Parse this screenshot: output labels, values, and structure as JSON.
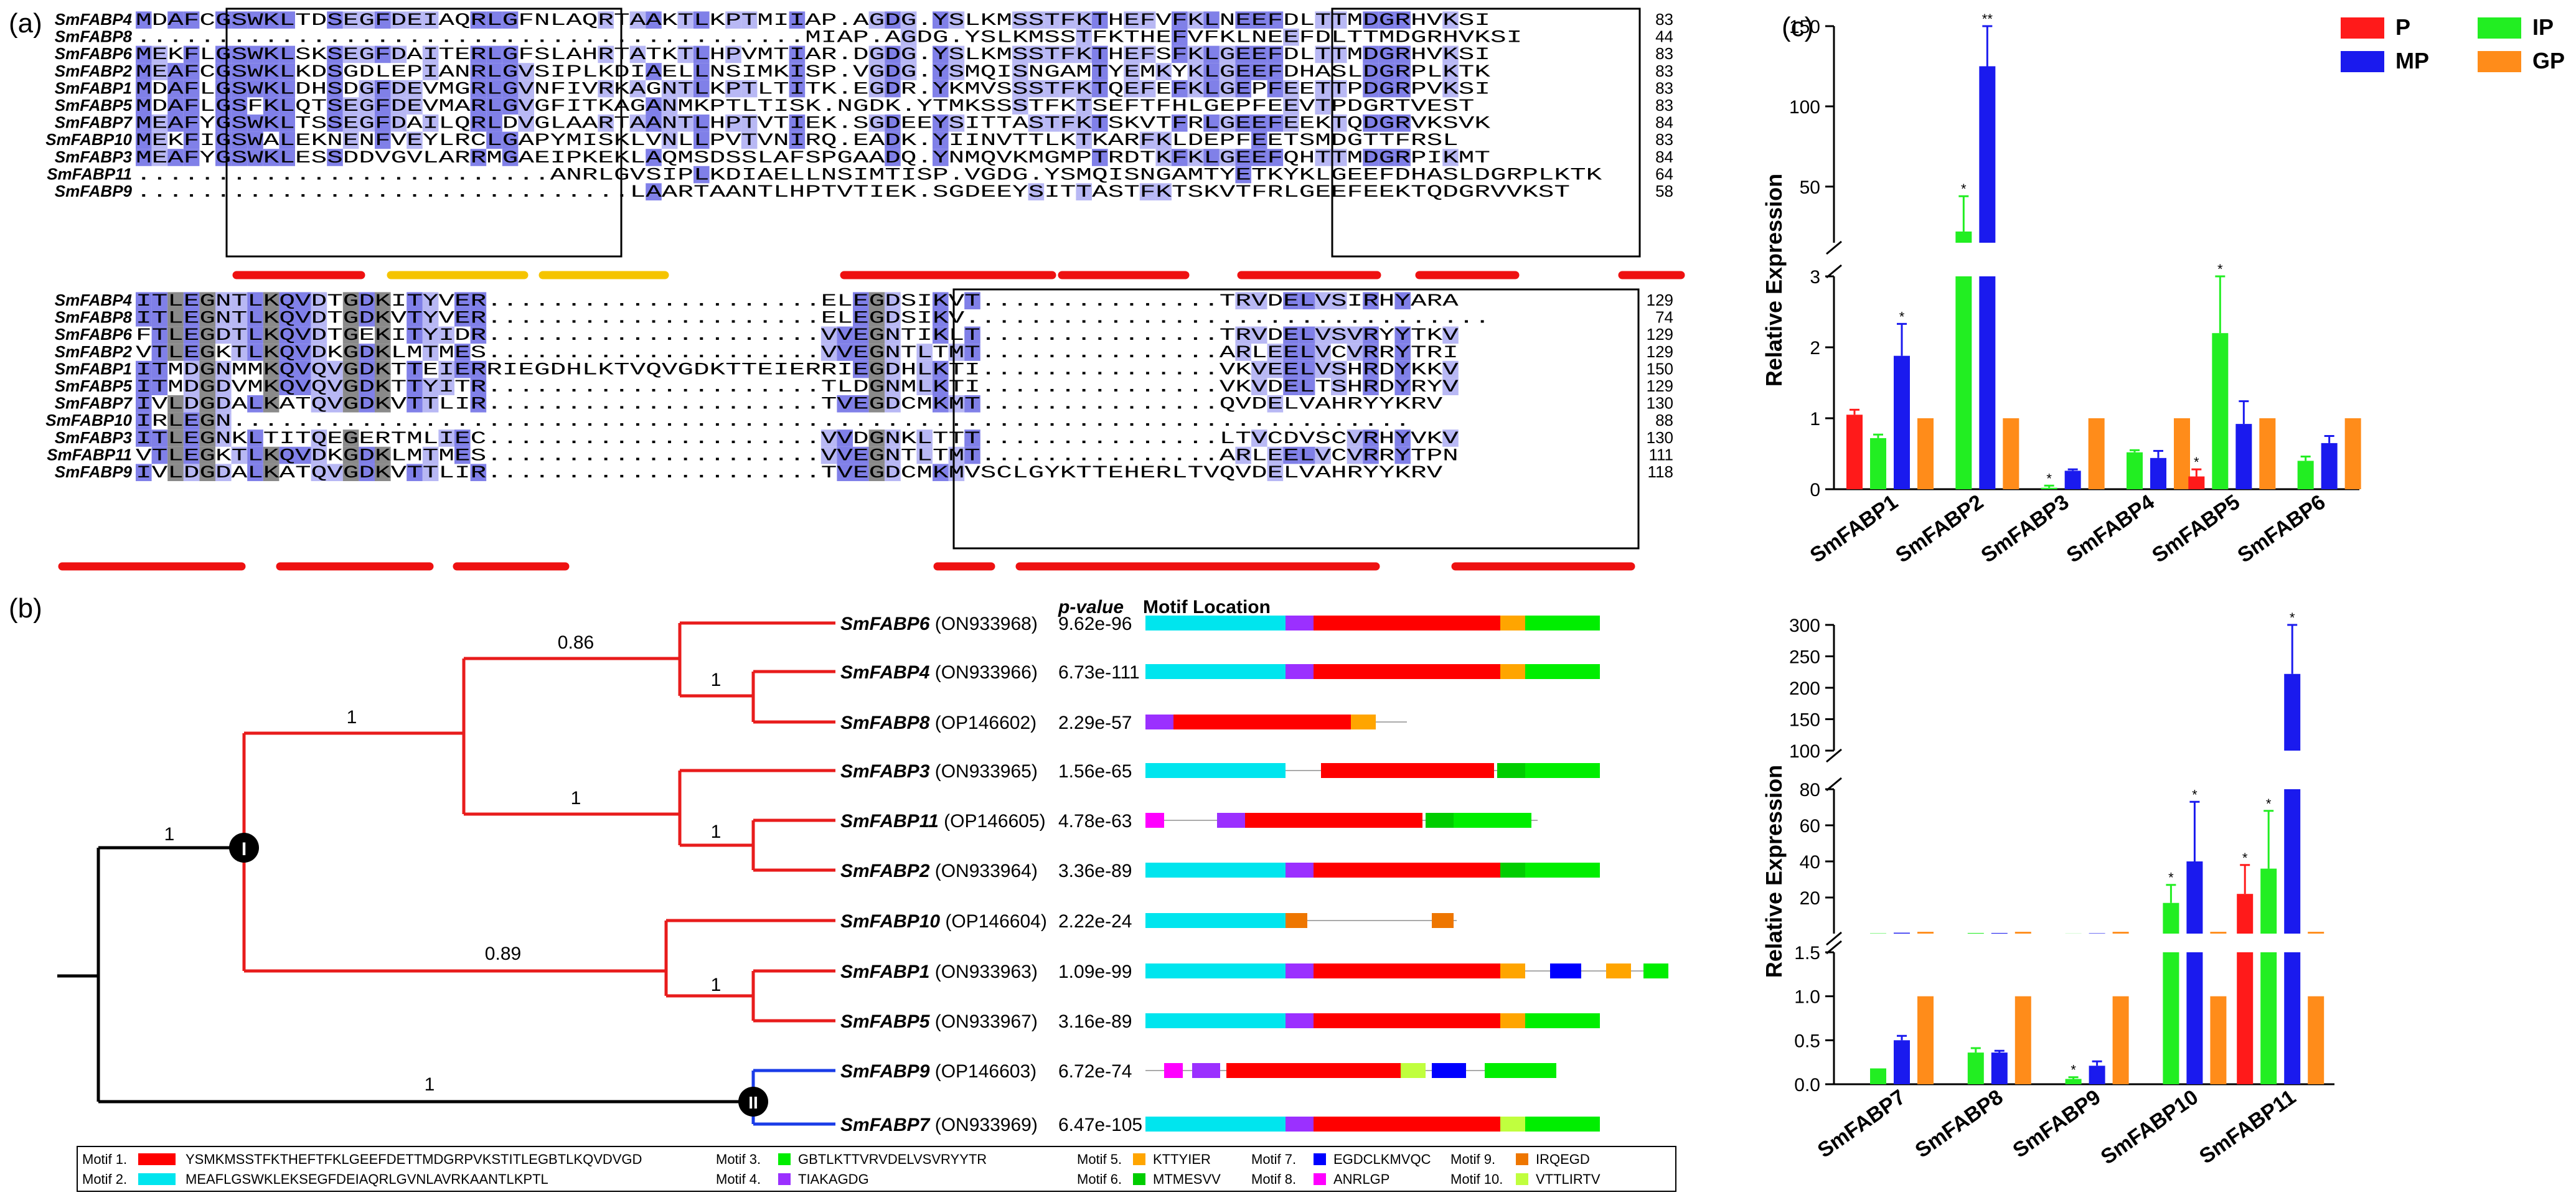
{
  "panel_a": {
    "label": "(a)",
    "block1": {
      "rows": [
        {
          "name": "SmFABP4",
          "seq": "MDAFCGSWKLTDSEGFDEIAQRLGFNLAQRTAAKTLKPTMIIAP.AGDG.YSLKMSSTFKTHEFVFKLNEEFDLTTMDGRHVKSI",
          "num": "83"
        },
        {
          "name": "SmFABP8",
          "seq": "..........................................MIAP.AGDG.YSLKMSSTFKTHEFVFKLNEEFDLTTMDGRHVKSI",
          "num": "44"
        },
        {
          "name": "SmFABP6",
          "seq": "MEKFLGSWKLSKSEGFDAITERLGFSLAHRTATKTLHPVMTIAR.DGDG.YSLKMSSTFKTHEFSFKLGEEFDLTTMDGRHVKSI",
          "num": "83"
        },
        {
          "name": "SmFABP2",
          "seq": "MEAFCGSWKLKDSGDLEPIANRLGVSIPLKDIAELLNSIMKISP.VGDG.YSMQISNGAMTYEMKYKLGEEFDHASLDGRPLKTK",
          "num": "83"
        },
        {
          "name": "SmFABP1",
          "seq": "MDAFLGSWKLDHSDGFDEVMGRLGVNFIVRKAGNTLKPTLTITK.EGDR.YKMVSSSTFKTQEFEFKLGEPFEETTPDGRPVKSI",
          "num": "83"
        },
        {
          "name": "SmFABP5",
          "seq": "MDAFLGSFKLQTSEGFDEVMARLGVGFITKAGANMKPTLTISK.NGDK.YTMKSSSTFKTSEFTFHLGEPFEEVTPDGRTVEST",
          "num": "83"
        },
        {
          "name": "SmFABP7",
          "seq": "MEAFYGSWKLTSSEGFDAILQRLDVGLAARTAANTLHPTVTIEK.SGDEEYSITTASTFKTSKVTFRLGEEFEEKTQDGRVKSVK",
          "num": "84"
        },
        {
          "name": "SmFABP10",
          "seq": "MEKFIGSWALEKNENFVEYLRCLGAPYMISKLVNLLPVTVNIRQ.EADK.YIINVTTLKTKARFKLDEPFEETSMDGTTFRSL",
          "num": "83"
        },
        {
          "name": "SmFABP3",
          "seq": "MEAFYGSWKLESSDDVGVLARRMGAEIPKEKLAQMSDSSLAFSPGAADQ.YNMQVKMGMPTRDTKFKLGEEFQHTTMDGRPIKMT",
          "num": "84"
        },
        {
          "name": "SmFABP11",
          "seq": "..........................ANRLGVSIPLKDIAELLNSIMTISP.VGDG.YSMQISNGAMTYETKYKLGEEFDHASLDGRPLKTK",
          "num": "64"
        },
        {
          "name": "SmFABP9",
          "seq": "...............................LAARTAANTLHPTVTIEK.SGDEEYSITTASTFKTSKVTFRLGEEFEEKTQDGRVVKST",
          "num": "58"
        }
      ]
    },
    "block2": {
      "rows": [
        {
          "name": "SmFABP4",
          "seq": "ITLEGNTLKQVDTGDKITYVER.....................ELEGDSIKVT...............TRVDELVSIRHYARA",
          "num": "129"
        },
        {
          "name": "SmFABP8",
          "seq": "ITLEGNTLKQVDTGDKVTYVER.....................ELEGDSIKV.................................",
          "num": "74"
        },
        {
          "name": "SmFABP6",
          "seq": "FTLEGDTLKQVDTGEKITYIDR.....................VVEGNTIKLT...............TRVDELVSVRYYTKV",
          "num": "129"
        },
        {
          "name": "SmFABP2",
          "seq": "VTLEGKTLKQVDKGDKLMTMES.....................VVEGNTLTMT...............ARLEELVCVRRYTRI",
          "num": "129"
        },
        {
          "name": "SmFABP1",
          "seq": "ITMDGNMMKQVQVGDKTTEIERRIEGDHLKTVQVGDKTTEIERRIEGDHLKTI...............VKVEELVSHRDYKKV",
          "num": "150"
        },
        {
          "name": "SmFABP5",
          "seq": "ITMDGDVMKQVQVGDKTTYITR.....................TLDGNMLKTI...............VKVDELTSHRDYRYV",
          "num": "129"
        },
        {
          "name": "SmFABP7",
          "seq": "IVLDGDALKATQVGDKVTTLIR.....................TVEGDCMKMT...............QVDELVAHRYYKRV",
          "num": "130"
        },
        {
          "name": "SmFABP10",
          "seq": "IRLEGN..........................................................................",
          "num": "88"
        },
        {
          "name": "SmFABP3",
          "seq": "ITLEGNKLTITQEGERTMLIEC.....................VVDGNKLTTT...............LTVCDVSCVRHYVKV",
          "num": "130"
        },
        {
          "name": "SmFABP11",
          "seq": "VTLEGKTLKQVDKGDKLMTMES.....................VVEGNTLTMT...............ARLEELVCVRRYTPN",
          "num": "111"
        },
        {
          "name": "SmFABP9",
          "seq": "IVLDGDALKATQVGDKVTTLIR.....................TVEGDCMKMVSCLGYKTTEHERLTVQVDELVAHRYYKRV",
          "num": "118"
        }
      ]
    }
  },
  "panel_b": {
    "label": "(b)",
    "header_pvalue": "p-value",
    "header_motif": "Motif Location",
    "genes": [
      {
        "name": "SmFABP6",
        "acc": "(ON933968)",
        "p": "9.62e-96"
      },
      {
        "name": "SmFABP4",
        "acc": "(ON933966)",
        "p": "6.73e-111"
      },
      {
        "name": "SmFABP8",
        "acc": "(OP146602)",
        "p": "2.29e-57"
      },
      {
        "name": "SmFABP3",
        "acc": "(ON933965)",
        "p": "1.56e-65"
      },
      {
        "name": "SmFABP11",
        "acc": "(OP146605)",
        "p": "4.78e-63"
      },
      {
        "name": "SmFABP2",
        "acc": "(ON933964)",
        "p": "3.36e-89"
      },
      {
        "name": "SmFABP10",
        "acc": "(OP146604)",
        "p": "2.22e-24"
      },
      {
        "name": "SmFABP1",
        "acc": "(ON933963)",
        "p": "1.09e-99"
      },
      {
        "name": "SmFABP5",
        "acc": "(ON933967)",
        "p": "3.16e-89"
      },
      {
        "name": "SmFABP9",
        "acc": "(OP146603)",
        "p": "6.72e-74"
      },
      {
        "name": "SmFABP7",
        "acc": "(ON933969)",
        "p": "6.47e-105"
      }
    ],
    "bootstrap": [
      "0.86",
      "1",
      "1",
      "1",
      "1",
      "1",
      "0.89",
      "1",
      "1"
    ],
    "clades": [
      "I",
      "II"
    ],
    "legend": [
      {
        "label": "Motif 1.",
        "seq": "YSMKMSSTFKTHEFTFKLGEEFDETTMDGRPVKSTITLEGBTLKQVDVGD",
        "color": "#ff0000"
      },
      {
        "label": "Motif 2.",
        "seq": "MEAFLGSWKLEKSEGFDEIAQRLGVNLAVRKAANTLKPTL",
        "color": "#00e5ee"
      },
      {
        "label": "Motif 3.",
        "seq": "GBTLKTTVRVDELVSVRYYTR",
        "color": "#00ee00"
      },
      {
        "label": "Motif 4.",
        "seq": "TIAKAGDG",
        "color": "#9b30ff"
      },
      {
        "label": "Motif 5.",
        "seq": "KTTYIER",
        "color": "#ffa500"
      },
      {
        "label": "Motif 6.",
        "seq": "MTMESVV",
        "color": "#00cd00"
      },
      {
        "label": "Motif 7.",
        "seq": "EGDCLKMVQC",
        "color": "#0000ff"
      },
      {
        "label": "Motif 8.",
        "seq": "ANRLGP",
        "color": "#ff00ff"
      },
      {
        "label": "Motif 9.",
        "seq": "IRQEGD",
        "color": "#ee7600"
      },
      {
        "label": "Motif 10.",
        "seq": "VTTLIRTV",
        "color": "#c0ff3e"
      }
    ]
  },
  "panel_c": {
    "label": "(c)",
    "legend": [
      {
        "name": "P",
        "color": "#ff1a1a"
      },
      {
        "name": "IP",
        "color": "#22ee22"
      },
      {
        "name": "MP",
        "color": "#1a1aee"
      },
      {
        "name": "GP",
        "color": "#ff8c1a"
      }
    ],
    "ylabel_top": "Relative Expression",
    "ylabel_bottom": "Relative Expression"
  },
  "chart_data": [
    {
      "type": "bar",
      "title": "",
      "ylabel": "Relative Expression",
      "categories": [
        "SmFABP1",
        "SmFABP2",
        "SmFABP3",
        "SmFABP4",
        "SmFABP5",
        "SmFABP6"
      ],
      "series": [
        {
          "name": "P",
          "values": [
            1.05,
            0,
            0,
            0,
            0.18,
            0
          ]
        },
        {
          "name": "IP",
          "values": [
            0.72,
            22,
            0.02,
            0.52,
            2.2,
            0.4
          ]
        },
        {
          "name": "MP",
          "values": [
            1.88,
            125,
            0.26,
            0.44,
            0.92,
            0.65
          ]
        },
        {
          "name": "GP",
          "values": [
            1,
            1,
            1,
            1,
            1,
            1
          ]
        }
      ],
      "error": [
        {
          "name": "P",
          "values": [
            0.07,
            0,
            0,
            0,
            0.1,
            0
          ]
        },
        {
          "name": "IP",
          "values": [
            0.05,
            22,
            0.03,
            0.03,
            0.8,
            0.06
          ]
        },
        {
          "name": "MP",
          "values": [
            0.45,
            25,
            0.02,
            0.1,
            0.32,
            0.1
          ]
        },
        {
          "name": "GP",
          "values": [
            0,
            0,
            0,
            0,
            0,
            0
          ]
        }
      ],
      "significance": [
        {
          "category": "SmFABP1",
          "series": "MP",
          "mark": "*"
        },
        {
          "category": "SmFABP2",
          "series": "IP",
          "mark": "*"
        },
        {
          "category": "SmFABP2",
          "series": "MP",
          "mark": "**"
        },
        {
          "category": "SmFABP3",
          "series": "IP",
          "mark": "*"
        },
        {
          "category": "SmFABP5",
          "series": "P",
          "mark": "*"
        },
        {
          "category": "SmFABP5",
          "series": "IP",
          "mark": "*"
        }
      ],
      "y_segments": [
        {
          "range": [
            0,
            3
          ],
          "ticks": [
            0,
            1,
            2,
            3
          ]
        },
        {
          "range": [
            15,
            150
          ],
          "ticks": [
            50,
            100,
            150
          ]
        }
      ]
    },
    {
      "type": "bar",
      "title": "",
      "ylabel": "Relative Expression",
      "categories": [
        "SmFABP7",
        "SmFABP8",
        "SmFABP9",
        "SmFABP10",
        "SmFABP11"
      ],
      "series": [
        {
          "name": "P",
          "values": [
            0,
            0,
            0,
            0,
            22
          ]
        },
        {
          "name": "IP",
          "values": [
            0.18,
            0.36,
            0.06,
            17,
            36
          ]
        },
        {
          "name": "MP",
          "values": [
            0.5,
            0.36,
            0.21,
            40,
            222
          ]
        },
        {
          "name": "GP",
          "values": [
            1,
            1,
            1,
            1,
            1
          ]
        }
      ],
      "error": [
        {
          "name": "P",
          "values": [
            0,
            0,
            0,
            0,
            16
          ]
        },
        {
          "name": "IP",
          "values": [
            0,
            0.05,
            0.02,
            10,
            32
          ]
        },
        {
          "name": "MP",
          "values": [
            0.05,
            0.02,
            0.05,
            33,
            80
          ]
        },
        {
          "name": "GP",
          "values": [
            0,
            0,
            0,
            0,
            0
          ]
        }
      ],
      "significance": [
        {
          "category": "SmFABP9",
          "series": "IP",
          "mark": "*"
        },
        {
          "category": "SmFABP10",
          "series": "IP",
          "mark": "*"
        },
        {
          "category": "SmFABP10",
          "series": "MP",
          "mark": "*"
        },
        {
          "category": "SmFABP11",
          "series": "P",
          "mark": "*"
        },
        {
          "category": "SmFABP11",
          "series": "IP",
          "mark": "*"
        },
        {
          "category": "SmFABP11",
          "series": "MP",
          "mark": "*"
        }
      ],
      "y_segments": [
        {
          "range": [
            0,
            1.5
          ],
          "ticks": [
            0.0,
            0.5,
            1.0,
            1.5
          ]
        },
        {
          "range": [
            0,
            80
          ],
          "ticks": [
            20,
            40,
            60,
            80
          ]
        },
        {
          "range": [
            100,
            300
          ],
          "ticks": [
            100,
            150,
            200,
            250,
            300
          ]
        }
      ]
    }
  ]
}
